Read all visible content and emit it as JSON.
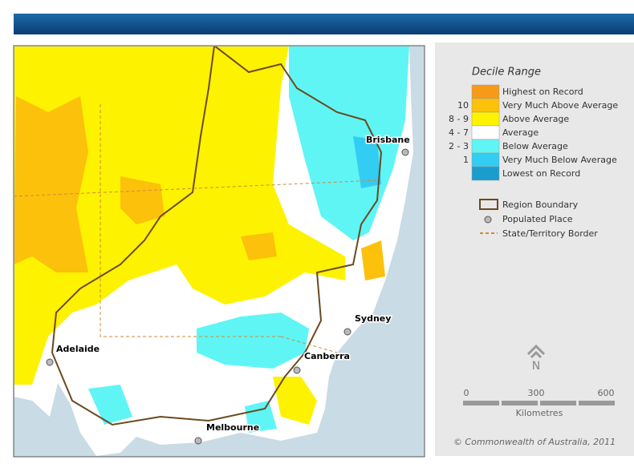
{
  "legend": {
    "title": "Decile Range",
    "items": [
      {
        "label": "Highest on Record",
        "color": "#f79a1a"
      },
      {
        "range": "10",
        "label": "Very Much Above Average",
        "color": "#fcc10a"
      },
      {
        "range": "8 - 9",
        "label": "Above Average",
        "color": "#fdf200"
      },
      {
        "range": "4 - 7",
        "label": "Average",
        "color": "#ffffff"
      },
      {
        "range": "2 - 3",
        "label": "Below Average",
        "color": "#5ff5f5"
      },
      {
        "range": "1",
        "label": "Very Much Below Average",
        "color": "#33ccf2"
      },
      {
        "label": "Lowest on Record",
        "color": "#1a9ccc"
      }
    ]
  },
  "symbols": [
    "Region Boundary",
    "Populated Place",
    "State/Territory Border"
  ],
  "north": "N",
  "scale": {
    "ticks": [
      "0",
      "300",
      "600"
    ],
    "unit": "Kilometres"
  },
  "places": [
    "Brisbane",
    "Sydney",
    "Canberra",
    "Adelaide",
    "Melbourne"
  ],
  "copyright": "© Commonwealth of Australia, 2011"
}
